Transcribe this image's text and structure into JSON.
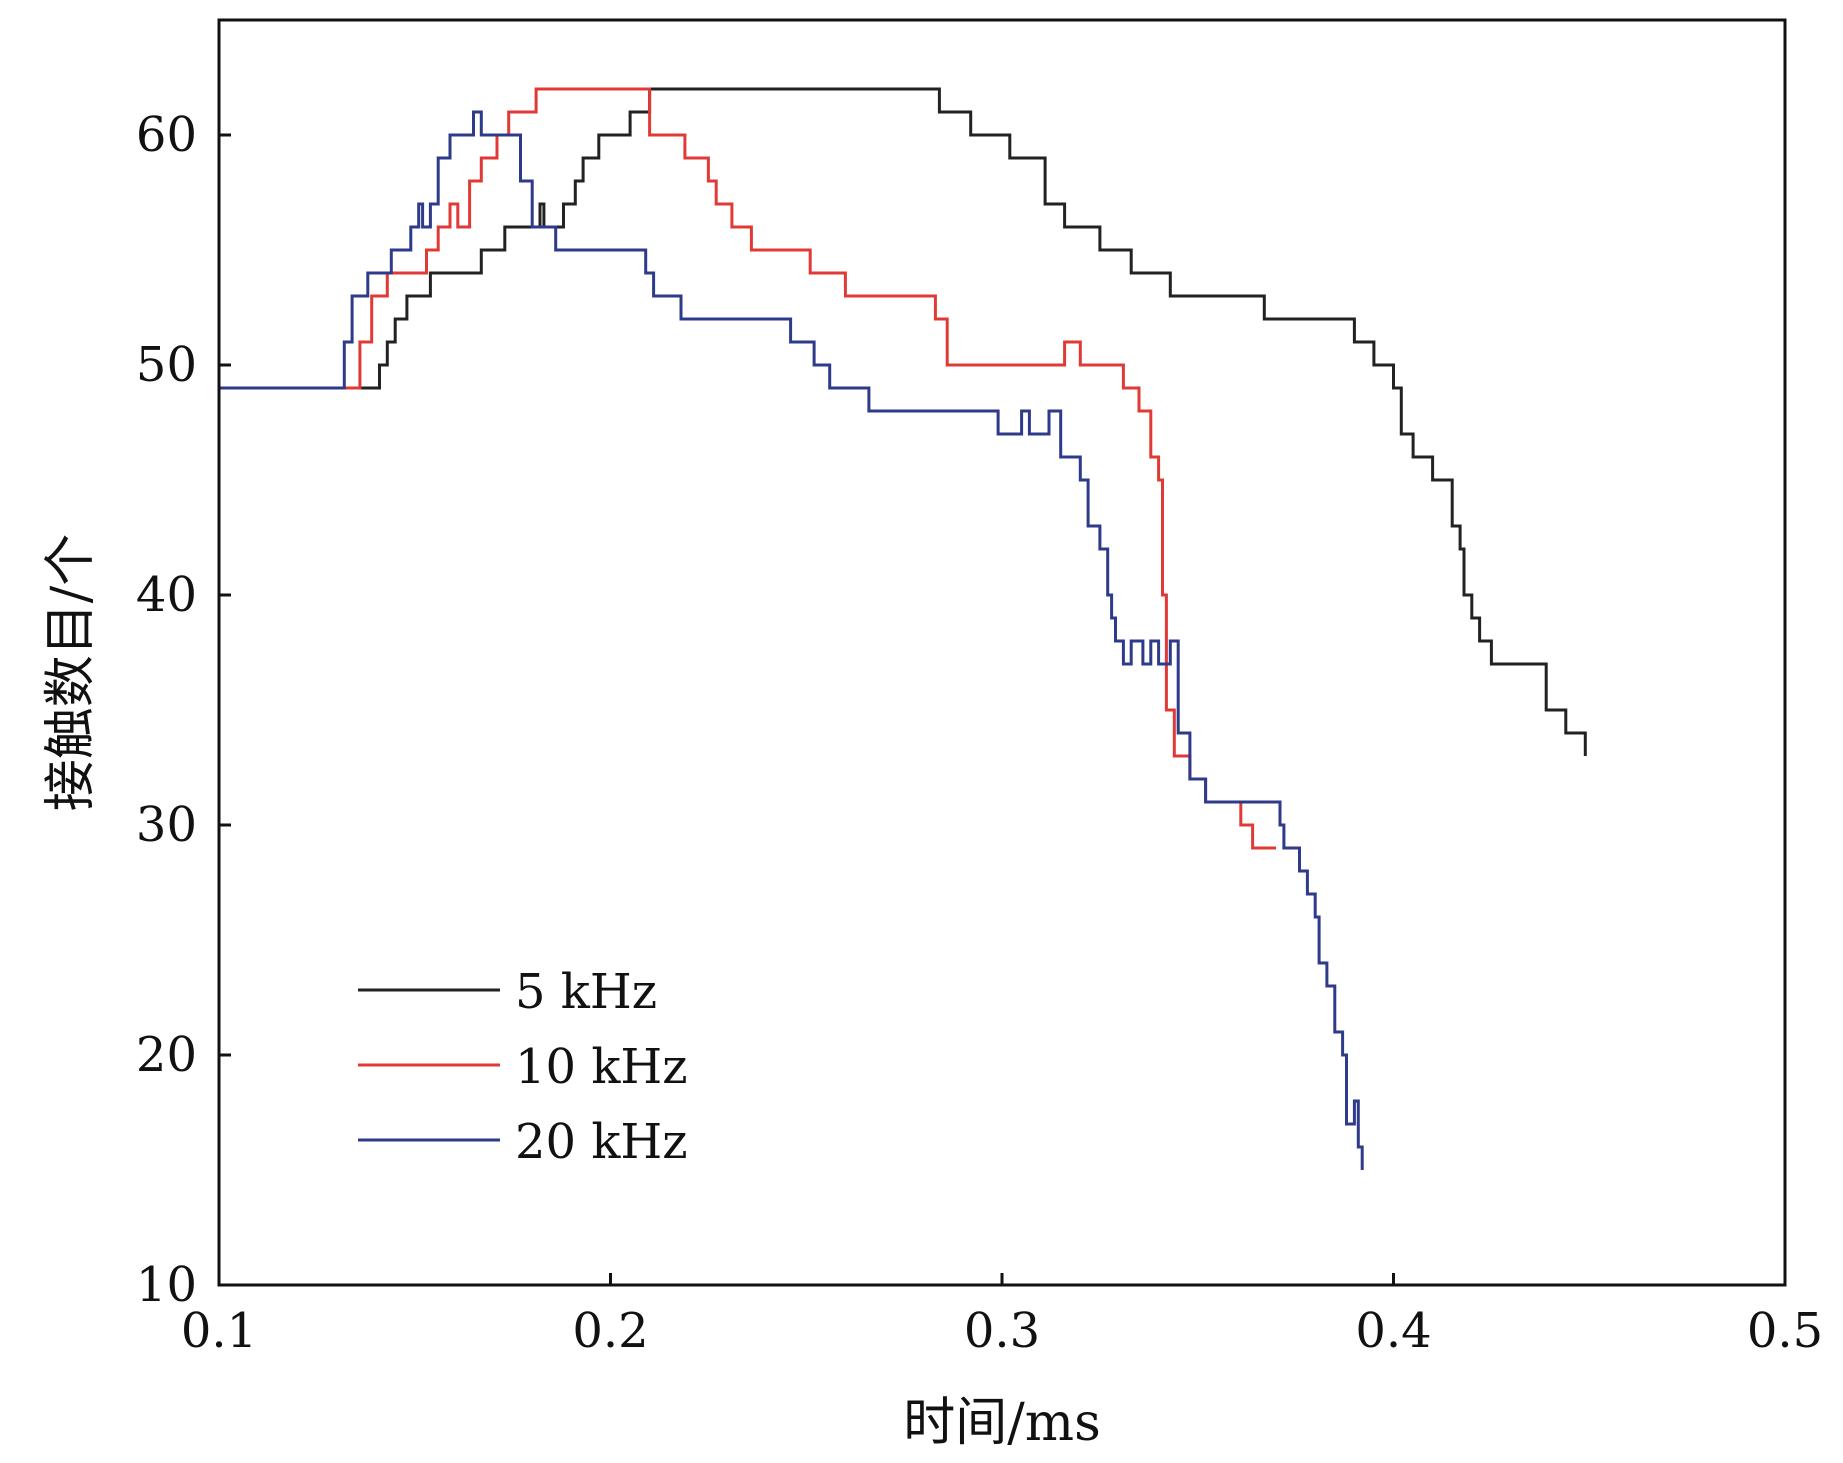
{
  "chart_data": {
    "type": "line",
    "title": "",
    "xlabel": "时间/ms",
    "ylabel": "接触数目/个",
    "xlim": [
      0.1,
      0.5
    ],
    "ylim": [
      10,
      65
    ],
    "x_ticks": [
      "0.1",
      "0.2",
      "0.3",
      "0.4",
      "0.5"
    ],
    "y_ticks": [
      "10",
      "20",
      "30",
      "40",
      "50",
      "60"
    ],
    "legend_position": "bottom-left",
    "grid": false,
    "step_lines": true,
    "series": [
      {
        "name": "5 kHz",
        "color": "#222222",
        "points": [
          [
            0.1,
            49
          ],
          [
            0.14,
            49
          ],
          [
            0.141,
            50
          ],
          [
            0.143,
            51
          ],
          [
            0.145,
            52
          ],
          [
            0.148,
            53
          ],
          [
            0.154,
            54
          ],
          [
            0.167,
            55
          ],
          [
            0.173,
            56
          ],
          [
            0.18,
            56
          ],
          [
            0.182,
            57
          ],
          [
            0.183,
            56
          ],
          [
            0.187,
            56
          ],
          [
            0.188,
            57
          ],
          [
            0.191,
            58
          ],
          [
            0.193,
            59
          ],
          [
            0.197,
            60
          ],
          [
            0.205,
            61
          ],
          [
            0.21,
            62
          ],
          [
            0.283,
            62
          ],
          [
            0.284,
            61
          ],
          [
            0.292,
            60
          ],
          [
            0.302,
            59
          ],
          [
            0.311,
            57
          ],
          [
            0.316,
            56
          ],
          [
            0.325,
            55
          ],
          [
            0.333,
            54
          ],
          [
            0.343,
            53
          ],
          [
            0.367,
            52
          ],
          [
            0.39,
            51
          ],
          [
            0.395,
            50
          ],
          [
            0.4,
            49
          ],
          [
            0.402,
            47
          ],
          [
            0.405,
            46
          ],
          [
            0.41,
            45
          ],
          [
            0.415,
            43
          ],
          [
            0.417,
            42
          ],
          [
            0.418,
            40
          ],
          [
            0.42,
            39
          ],
          [
            0.422,
            38
          ],
          [
            0.425,
            37
          ],
          [
            0.439,
            35
          ],
          [
            0.444,
            34
          ],
          [
            0.449,
            33
          ]
        ]
      },
      {
        "name": "10 kHz",
        "color": "#e03a36",
        "points": [
          [
            0.1,
            49
          ],
          [
            0.135,
            49
          ],
          [
            0.136,
            51
          ],
          [
            0.139,
            53
          ],
          [
            0.143,
            54
          ],
          [
            0.153,
            55
          ],
          [
            0.156,
            56
          ],
          [
            0.159,
            57
          ],
          [
            0.161,
            56
          ],
          [
            0.164,
            58
          ],
          [
            0.167,
            59
          ],
          [
            0.171,
            60
          ],
          [
            0.174,
            61
          ],
          [
            0.181,
            62
          ],
          [
            0.208,
            62
          ],
          [
            0.21,
            60
          ],
          [
            0.219,
            59
          ],
          [
            0.225,
            58
          ],
          [
            0.227,
            57
          ],
          [
            0.231,
            56
          ],
          [
            0.236,
            55
          ],
          [
            0.251,
            54
          ],
          [
            0.26,
            53
          ],
          [
            0.283,
            52
          ],
          [
            0.286,
            50
          ],
          [
            0.316,
            51
          ],
          [
            0.32,
            50
          ],
          [
            0.331,
            49
          ],
          [
            0.335,
            48
          ],
          [
            0.338,
            46
          ],
          [
            0.34,
            45
          ],
          [
            0.341,
            40
          ],
          [
            0.342,
            35
          ],
          [
            0.344,
            33
          ],
          [
            0.348,
            32
          ],
          [
            0.352,
            31
          ],
          [
            0.361,
            30
          ],
          [
            0.364,
            29
          ],
          [
            0.37,
            29
          ]
        ]
      },
      {
        "name": "20 kHz",
        "color": "#2e3a8a",
        "points": [
          [
            0.1,
            49
          ],
          [
            0.131,
            49
          ],
          [
            0.132,
            51
          ],
          [
            0.134,
            53
          ],
          [
            0.138,
            54
          ],
          [
            0.144,
            55
          ],
          [
            0.149,
            56
          ],
          [
            0.151,
            57
          ],
          [
            0.152,
            56
          ],
          [
            0.154,
            57
          ],
          [
            0.156,
            59
          ],
          [
            0.159,
            60
          ],
          [
            0.165,
            61
          ],
          [
            0.167,
            60
          ],
          [
            0.177,
            58
          ],
          [
            0.18,
            56
          ],
          [
            0.186,
            55
          ],
          [
            0.199,
            55
          ],
          [
            0.209,
            54
          ],
          [
            0.211,
            53
          ],
          [
            0.218,
            52
          ],
          [
            0.246,
            51
          ],
          [
            0.252,
            50
          ],
          [
            0.256,
            49
          ],
          [
            0.266,
            48
          ],
          [
            0.299,
            47
          ],
          [
            0.305,
            48
          ],
          [
            0.307,
            47
          ],
          [
            0.312,
            48
          ],
          [
            0.315,
            46
          ],
          [
            0.32,
            45
          ],
          [
            0.322,
            43
          ],
          [
            0.325,
            42
          ],
          [
            0.327,
            40
          ],
          [
            0.328,
            39
          ],
          [
            0.329,
            38
          ],
          [
            0.331,
            37
          ],
          [
            0.333,
            38
          ],
          [
            0.336,
            37
          ],
          [
            0.338,
            38
          ],
          [
            0.34,
            37
          ],
          [
            0.343,
            38
          ],
          [
            0.345,
            34
          ],
          [
            0.348,
            32
          ],
          [
            0.352,
            31
          ],
          [
            0.371,
            30
          ],
          [
            0.372,
            29
          ],
          [
            0.376,
            28
          ],
          [
            0.378,
            27
          ],
          [
            0.38,
            26
          ],
          [
            0.381,
            24
          ],
          [
            0.383,
            23
          ],
          [
            0.385,
            21
          ],
          [
            0.387,
            20
          ],
          [
            0.388,
            17
          ],
          [
            0.39,
            18
          ],
          [
            0.391,
            16
          ],
          [
            0.392,
            15
          ]
        ]
      }
    ]
  }
}
